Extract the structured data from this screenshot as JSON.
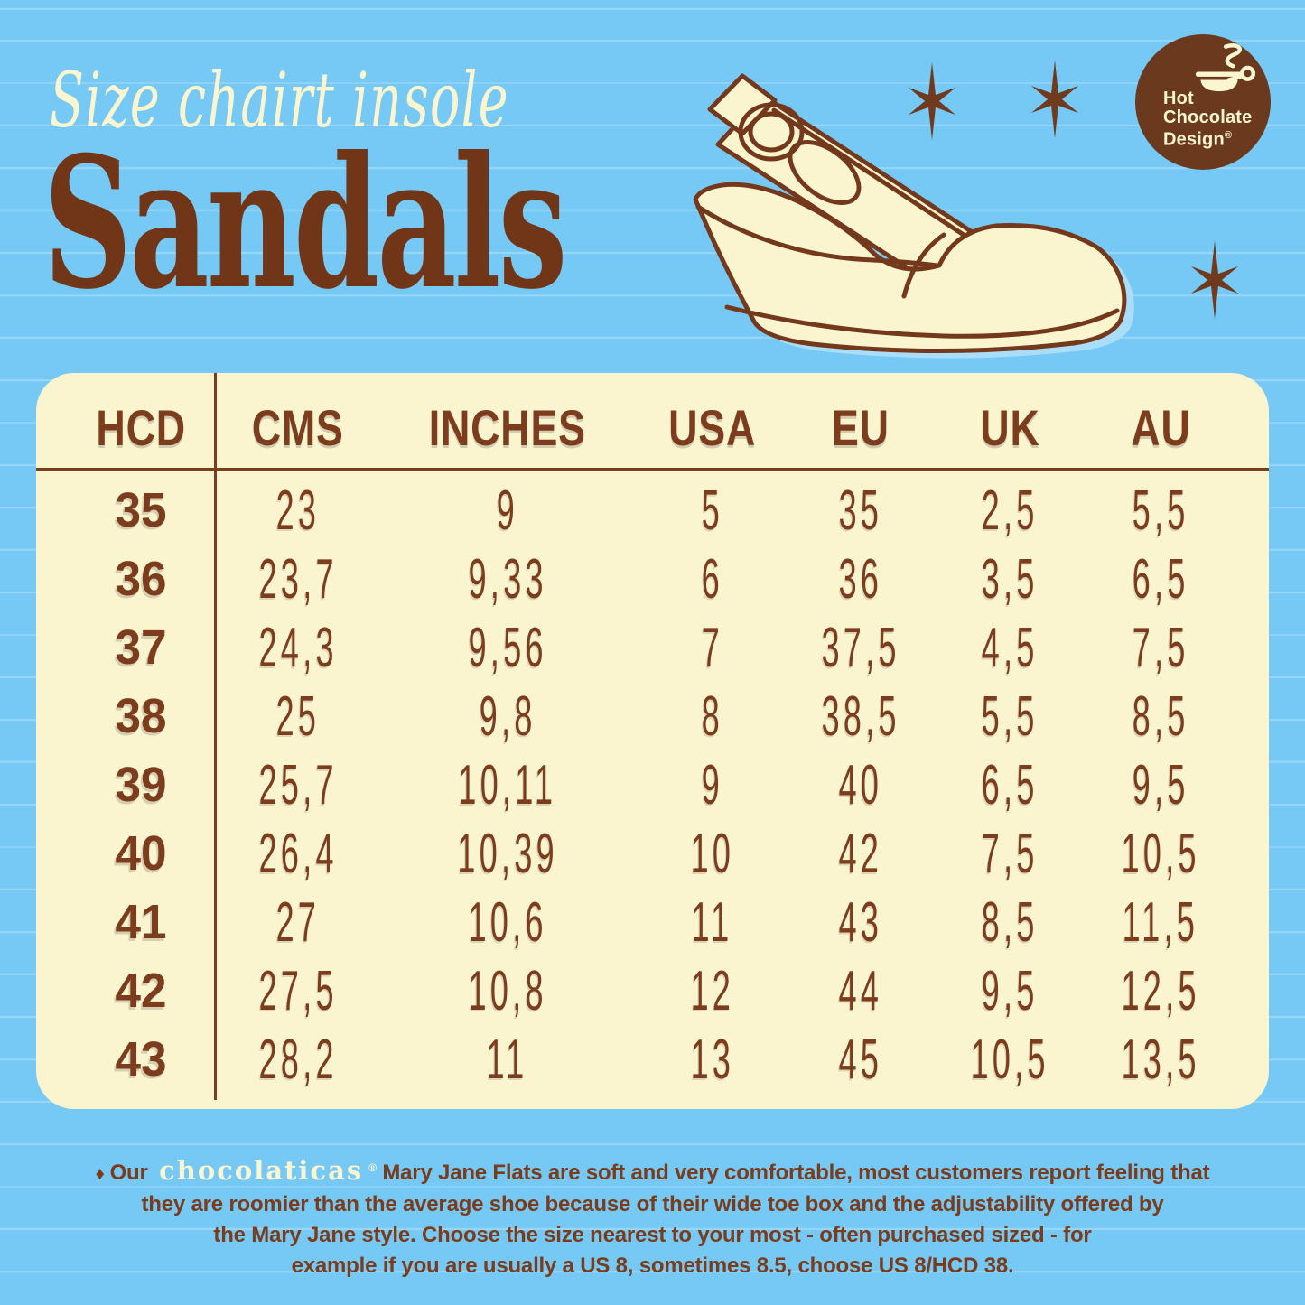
{
  "header": {
    "script_title": "Size chairt insole",
    "main_title": "Sandals"
  },
  "logo": {
    "line1": "Hot",
    "line2": "Chocolate",
    "line3": "Design",
    "reg": "®"
  },
  "table": {
    "columns": [
      "HCD",
      "CMS",
      "INCHES",
      "USA",
      "EU",
      "UK",
      "AU"
    ],
    "rows": [
      [
        "35",
        "23",
        "9",
        "5",
        "35",
        "2,5",
        "5,5"
      ],
      [
        "36",
        "23,7",
        "9,33",
        "6",
        "36",
        "3,5",
        "6,5"
      ],
      [
        "37",
        "24,3",
        "9,56",
        "7",
        "37,5",
        "4,5",
        "7,5"
      ],
      [
        "38",
        "25",
        "9,8",
        "8",
        "38,5",
        "5,5",
        "8,5"
      ],
      [
        "39",
        "25,7",
        "10,11",
        "9",
        "40",
        "6,5",
        "9,5"
      ],
      [
        "40",
        "26,4",
        "10,39",
        "10",
        "42",
        "7,5",
        "10,5"
      ],
      [
        "41",
        "27",
        "10,6",
        "11",
        "43",
        "8,5",
        "11,5"
      ],
      [
        "42",
        "27,5",
        "10,8",
        "12",
        "44",
        "9,5",
        "12,5"
      ],
      [
        "43",
        "28,2",
        "11",
        "13",
        "45",
        "10,5",
        "13,5"
      ]
    ]
  },
  "footer": {
    "bullet": "♦",
    "prefix": "Our",
    "brand": "chocolaticas",
    "brand_reg": "®",
    "line1_rest": "Mary Jane Flats are soft and very comfortable, most customers report feeling that",
    "line2": "they are roomier than the average shoe because of their wide toe box and the adjustability offered by",
    "line3": "the Mary Jane style. Choose the size nearest to your most - often  purchased sized - for",
    "line4": "example if you are usually a US 8, sometimes 8.5, choose US 8/HCD 38."
  },
  "colors": {
    "background_blue": "#76C8F5",
    "ruled_line_blue": "#93D5F8",
    "cream": "#FBF5CF",
    "brown_dark": "#6B3A1E",
    "brown_text": "#7B3D1E",
    "shadow_blue": "#A9DDFA"
  },
  "icons": [
    "six-point-star-icon",
    "hot-chocolate-design-logo",
    "cup-steam-icon",
    "sandal-illustration"
  ]
}
